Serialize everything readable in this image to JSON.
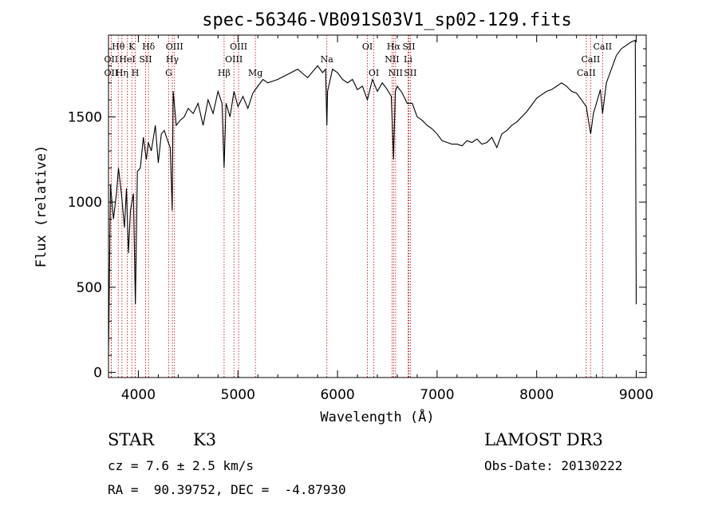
{
  "chart_data": {
    "type": "line",
    "title": "spec-56346-VB091S03V1_sp02-129.fits",
    "xlabel": "Wavelength (Å)",
    "ylabel": "Flux (relative)",
    "xlim": [
      3700,
      9100
    ],
    "ylim": [
      -30,
      1980
    ],
    "xticks": [
      4000,
      5000,
      6000,
      7000,
      8000,
      9000
    ],
    "yticks": [
      0,
      500,
      1000,
      1500
    ],
    "series": [
      {
        "name": "spectrum",
        "x": [
          3700,
          3720,
          3750,
          3780,
          3800,
          3830,
          3860,
          3880,
          3900,
          3920,
          3950,
          3970,
          3990,
          4020,
          4050,
          4080,
          4100,
          4130,
          4170,
          4200,
          4230,
          4260,
          4300,
          4320,
          4340,
          4350,
          4380,
          4420,
          4460,
          4500,
          4550,
          4600,
          4650,
          4700,
          4750,
          4800,
          4840,
          4861,
          4880,
          4920,
          4960,
          5000,
          5050,
          5100,
          5150,
          5200,
          5250,
          5300,
          5400,
          5500,
          5600,
          5700,
          5800,
          5850,
          5880,
          5893,
          5900,
          5950,
          6000,
          6050,
          6100,
          6150,
          6200,
          6250,
          6300,
          6350,
          6400,
          6450,
          6500,
          6540,
          6563,
          6580,
          6600,
          6650,
          6700,
          6750,
          6800,
          6850,
          6900,
          6950,
          7000,
          7050,
          7100,
          7150,
          7200,
          7250,
          7300,
          7350,
          7400,
          7450,
          7500,
          7550,
          7600,
          7650,
          7700,
          7750,
          7800,
          7850,
          7900,
          7950,
          8000,
          8050,
          8100,
          8150,
          8200,
          8250,
          8300,
          8350,
          8400,
          8450,
          8498,
          8520,
          8542,
          8570,
          8600,
          8640,
          8662,
          8700,
          8750,
          8800,
          8850,
          8900,
          8950,
          8990,
          9000
        ],
        "y": [
          100,
          1100,
          900,
          1050,
          1200,
          1050,
          850,
          1080,
          700,
          950,
          1050,
          400,
          1180,
          1200,
          1380,
          1250,
          1350,
          1300,
          1450,
          1230,
          1400,
          1420,
          1350,
          1320,
          950,
          1650,
          1450,
          1480,
          1500,
          1550,
          1520,
          1580,
          1450,
          1600,
          1520,
          1650,
          1580,
          1200,
          1580,
          1500,
          1650,
          1560,
          1620,
          1550,
          1640,
          1680,
          1720,
          1700,
          1720,
          1750,
          1780,
          1730,
          1800,
          1760,
          1780,
          1450,
          1650,
          1780,
          1760,
          1720,
          1700,
          1720,
          1660,
          1680,
          1600,
          1720,
          1650,
          1700,
          1660,
          1620,
          1250,
          1650,
          1680,
          1640,
          1580,
          1580,
          1500,
          1480,
          1450,
          1430,
          1400,
          1360,
          1350,
          1340,
          1340,
          1330,
          1360,
          1350,
          1370,
          1340,
          1350,
          1380,
          1320,
          1400,
          1420,
          1450,
          1470,
          1500,
          1530,
          1570,
          1610,
          1630,
          1650,
          1660,
          1680,
          1700,
          1680,
          1650,
          1640,
          1600,
          1560,
          1480,
          1400,
          1520,
          1580,
          1660,
          1520,
          1700,
          1780,
          1860,
          1900,
          1920,
          1940,
          1950,
          400
        ]
      }
    ],
    "lines": [
      {
        "label": "Hθ",
        "x": 3798,
        "row": 0
      },
      {
        "label": "OII",
        "x": 3727,
        "row": 1
      },
      {
        "label": "OII",
        "x": 3727,
        "row": 2
      },
      {
        "label": "K",
        "x": 3934,
        "row": 0
      },
      {
        "label": "HeI",
        "x": 3889,
        "row": 1
      },
      {
        "label": "Hη",
        "x": 3835,
        "row": 2
      },
      {
        "label": "Hδ",
        "x": 4102,
        "row": 0
      },
      {
        "label": "SII",
        "x": 4072,
        "row": 1
      },
      {
        "label": "H",
        "x": 3969,
        "row": 2
      },
      {
        "label": "OIII",
        "x": 4363,
        "row": 0
      },
      {
        "label": "Hγ",
        "x": 4341,
        "row": 1
      },
      {
        "label": "G",
        "x": 4305,
        "row": 2
      },
      {
        "label": "OIII",
        "x": 5007,
        "row": 0
      },
      {
        "label": "OIII",
        "x": 4959,
        "row": 1
      },
      {
        "label": "Hβ",
        "x": 4861,
        "row": 2
      },
      {
        "label": "Mg",
        "x": 5175,
        "row": 2
      },
      {
        "label": "Na",
        "x": 5893,
        "row": 1
      },
      {
        "label": "OI",
        "x": 6300,
        "row": 0
      },
      {
        "label": "OI",
        "x": 6364,
        "row": 2
      },
      {
        "label": "Hα",
        "x": 6563,
        "row": 0
      },
      {
        "label": "SII",
        "x": 6716,
        "row": 0
      },
      {
        "label": "NII",
        "x": 6548,
        "row": 1
      },
      {
        "label": "Li",
        "x": 6708,
        "row": 1
      },
      {
        "label": "NII",
        "x": 6583,
        "row": 2
      },
      {
        "label": "SII",
        "x": 6731,
        "row": 2
      },
      {
        "label": "CaII",
        "x": 8662,
        "row": 0
      },
      {
        "label": "CaII",
        "x": 8542,
        "row": 1
      },
      {
        "label": "CaII",
        "x": 8498,
        "row": 2
      }
    ]
  },
  "info": {
    "classification": "STAR",
    "subclass": "K3",
    "survey": "LAMOST DR3",
    "cz": "cz = 7.6 ± 2.5 km/s",
    "obs_date": "Obs-Date: 20130222",
    "coords": "RA =  90.39752, DEC =  -4.87930"
  },
  "colors": {
    "line_marker": "#c00000",
    "spectrum": "#000000"
  }
}
